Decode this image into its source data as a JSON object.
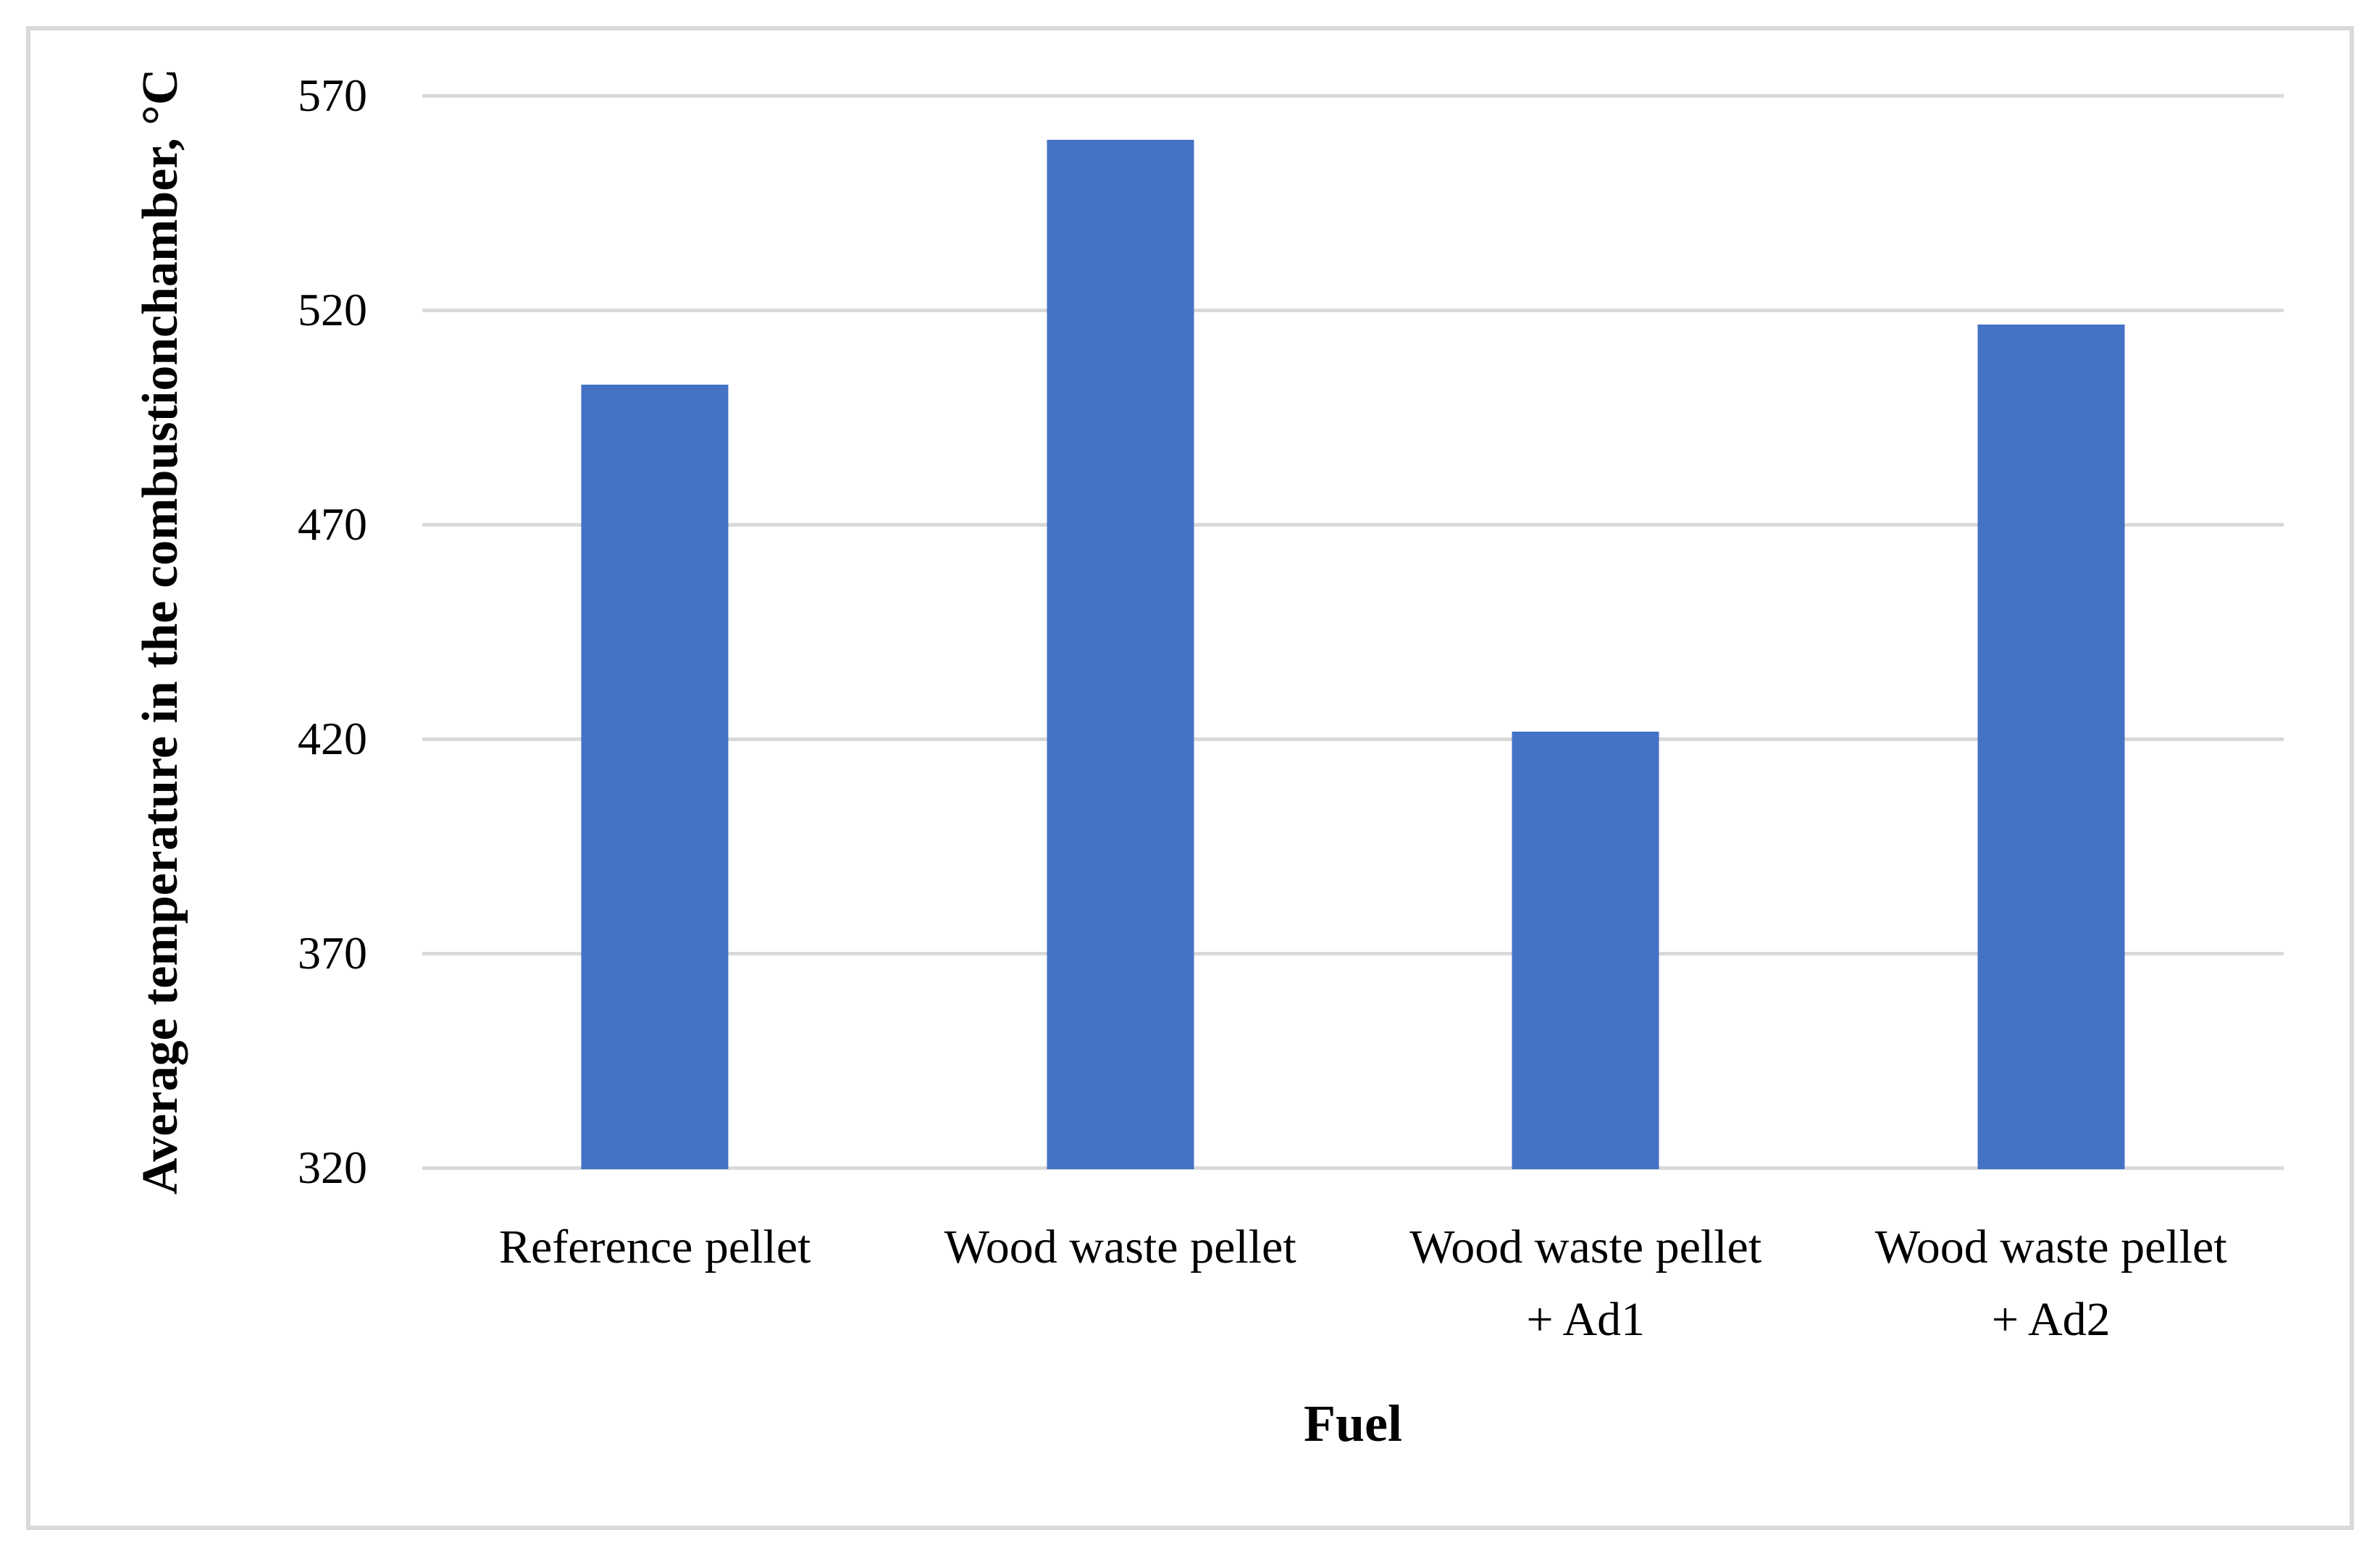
{
  "chart_data": {
    "type": "bar",
    "title": "",
    "categories": [
      "Reference pellet",
      "Wood waste pellet",
      "Wood waste pellet + Ad1",
      "Wood waste pellet + Ad2"
    ],
    "category_lines": [
      [
        "Reference pellet"
      ],
      [
        "Wood waste pellet"
      ],
      [
        "Wood waste pellet",
        "+ Ad1"
      ],
      [
        "Wood waste pellet",
        "+ Ad2"
      ]
    ],
    "values": [
      503,
      560,
      422,
      517
    ],
    "xlabel": "Fuel",
    "ylabel": "Average temperature in the combustion chamber, °C",
    "ylabel_lines": [
      "Average temperature in the combustion",
      "chamber, °C"
    ],
    "yticks": [
      570,
      520,
      470,
      420,
      370,
      320
    ],
    "ylim": [
      320,
      570
    ],
    "grid": true,
    "legend": false,
    "bar_color": "#4472C4",
    "gridline_color": "#D9D9D9",
    "frame_border_color": "#D9D9D9"
  }
}
